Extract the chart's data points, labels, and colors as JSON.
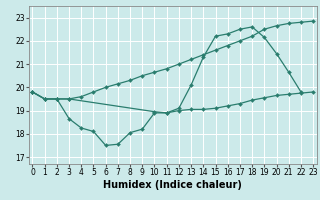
{
  "line1": {
    "x": [
      0,
      1,
      2,
      3,
      4,
      5,
      6,
      7,
      8,
      9,
      10,
      11,
      12,
      13,
      14,
      15,
      16,
      17,
      18,
      19,
      20,
      21,
      22,
      23
    ],
    "y": [
      19.8,
      19.5,
      19.5,
      19.5,
      19.6,
      19.8,
      20.0,
      20.15,
      20.3,
      20.5,
      20.65,
      20.8,
      21.0,
      21.2,
      21.4,
      21.6,
      21.8,
      22.0,
      22.2,
      22.5,
      22.65,
      22.75,
      22.8,
      22.85
    ]
  },
  "line2": {
    "x": [
      0,
      1,
      2,
      3,
      4,
      5,
      6,
      7,
      8,
      9,
      10,
      11,
      12,
      13,
      14,
      15,
      16,
      17,
      18,
      19,
      20,
      21,
      22
    ],
    "y": [
      19.8,
      19.5,
      19.5,
      18.65,
      18.25,
      18.1,
      17.5,
      17.55,
      18.05,
      18.2,
      18.9,
      18.9,
      19.1,
      20.1,
      21.3,
      22.2,
      22.3,
      22.5,
      22.6,
      22.15,
      21.45,
      20.65,
      19.8
    ]
  },
  "line3": {
    "x": [
      0,
      1,
      2,
      3,
      10,
      11,
      12,
      13,
      14,
      15,
      16,
      17,
      18,
      19,
      20,
      21,
      22,
      23
    ],
    "y": [
      19.8,
      19.5,
      19.5,
      19.5,
      18.95,
      18.9,
      19.0,
      19.05,
      19.05,
      19.1,
      19.2,
      19.3,
      19.45,
      19.55,
      19.65,
      19.7,
      19.75,
      19.8
    ]
  },
  "xlim": [
    -0.3,
    23.3
  ],
  "ylim": [
    16.7,
    23.5
  ],
  "yticks": [
    17,
    18,
    19,
    20,
    21,
    22,
    23
  ],
  "xticks": [
    0,
    1,
    2,
    3,
    4,
    5,
    6,
    7,
    8,
    9,
    10,
    11,
    12,
    13,
    14,
    15,
    16,
    17,
    18,
    19,
    20,
    21,
    22,
    23
  ],
  "xlabel": "Humidex (Indice chaleur)",
  "bg_color": "#cceaea",
  "grid_color": "#ffffff",
  "line_color": "#2a7d6e",
  "tick_fontsize": 5.5,
  "xlabel_fontsize": 7.0,
  "marker": "D",
  "markersize": 2.0,
  "linewidth": 0.9
}
